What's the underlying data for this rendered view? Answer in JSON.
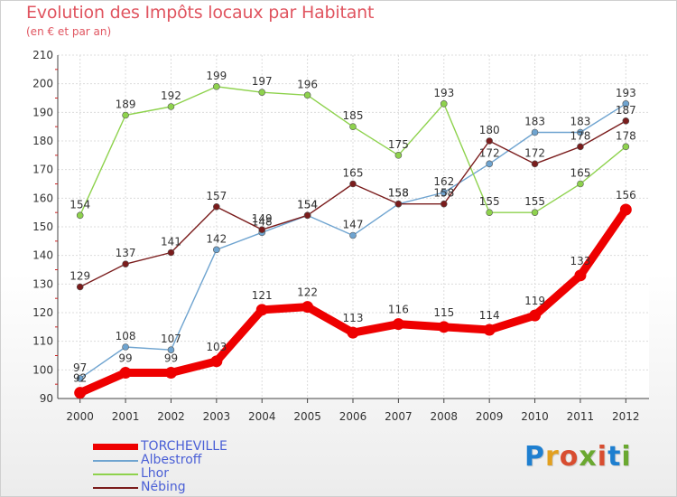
{
  "title": "Evolution des Impôts locaux par Habitant",
  "subtitle": "(en € et par an)",
  "logo": {
    "text": "Proxiti",
    "letters": [
      "P",
      "r",
      "o",
      "x",
      "i",
      "t",
      "i"
    ],
    "colors": [
      "#1e7fd0",
      "#e2a020",
      "#d84d30",
      "#6aa830",
      "#d84d30",
      "#1e7fd0",
      "#6aa830"
    ]
  },
  "chart_data": {
    "type": "line",
    "title": "Evolution des Impôts locaux par Habitant",
    "ylabel": "(en € et par an)",
    "xlabel": "",
    "x": [
      "2000",
      "2001",
      "2002",
      "2003",
      "2004",
      "2005",
      "2006",
      "2007",
      "2008",
      "2009",
      "2010",
      "2011",
      "2012"
    ],
    "ylim": [
      90,
      210
    ],
    "yticks": [
      90,
      100,
      110,
      120,
      130,
      140,
      150,
      160,
      170,
      180,
      190,
      200,
      210
    ],
    "grid": true,
    "legend_position": "bottom-left",
    "series": [
      {
        "name": "TORCHEVILLE",
        "color": "#ee0000",
        "emphasis": true,
        "values": [
          92,
          99,
          99,
          103,
          121,
          122,
          113,
          116,
          115,
          114,
          119,
          133,
          156
        ],
        "labels": [
          "92",
          "99",
          "99",
          "103",
          "121",
          "122",
          "113",
          "116",
          "115",
          "114",
          "119",
          "133",
          "156"
        ]
      },
      {
        "name": "Albestroff",
        "color": "#6fa4d0",
        "emphasis": false,
        "values": [
          97,
          108,
          107,
          142,
          148,
          154,
          147,
          158,
          162,
          172,
          183,
          183,
          193
        ],
        "labels": [
          "97",
          "108",
          "107",
          "142",
          "148",
          "154",
          "147",
          "158",
          "162",
          "172",
          "183",
          "183",
          "193"
        ]
      },
      {
        "name": "Lhor",
        "color": "#8ed24d",
        "emphasis": false,
        "values": [
          154,
          189,
          192,
          199,
          197,
          196,
          185,
          175,
          193,
          155,
          155,
          165,
          178
        ],
        "labels": [
          "154",
          "189",
          "192",
          "199",
          "197",
          "196",
          "185",
          "175",
          "193",
          "155",
          "155",
          "165",
          "178"
        ]
      },
      {
        "name": "Nébing",
        "color": "#7a1c1c",
        "emphasis": false,
        "values": [
          129,
          137,
          141,
          157,
          149,
          154,
          165,
          158,
          158,
          180,
          172,
          178,
          187
        ],
        "labels": [
          "129",
          "137",
          "141",
          "157",
          "149",
          "154",
          "165",
          "158",
          "158",
          "180",
          "172",
          "178",
          "187"
        ]
      }
    ]
  }
}
